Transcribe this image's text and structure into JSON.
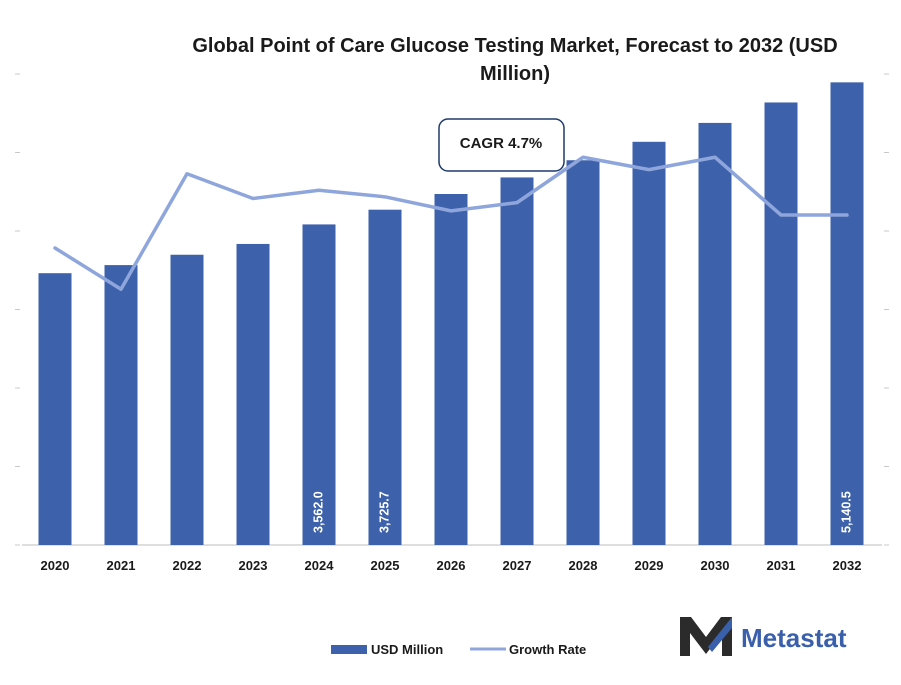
{
  "colors": {
    "bar": "#3d61aa",
    "line": "#8fa6dc",
    "text": "#1a1a1a",
    "brand": "#3a5fab",
    "brand_dark": "#2b2b2b"
  },
  "chart_data": {
    "type": "bar",
    "title_line1": "Global Point of Care Glucose Testing Market, Forecast to 2032 (USD",
    "title_line2": "Million)",
    "categories": [
      "2020",
      "2021",
      "2022",
      "2023",
      "2024",
      "2025",
      "2026",
      "2027",
      "2028",
      "2029",
      "2030",
      "2031",
      "2032"
    ],
    "series": [
      {
        "name": "USD Million",
        "kind": "bar",
        "values": [
          3020,
          3110,
          3225,
          3345,
          3562.0,
          3725.7,
          3900,
          4084,
          4275,
          4480,
          4690,
          4917,
          5140.5
        ],
        "value_labels": [
          "",
          "",
          "",
          "",
          "3,562.0",
          "3,725.7",
          "",
          "",
          "",
          "",
          "",
          "",
          "5,140.5"
        ]
      },
      {
        "name": "Growth Rate",
        "kind": "line",
        "values": [
          3.6,
          3.1,
          4.5,
          4.2,
          4.3,
          4.22,
          4.05,
          4.15,
          4.7,
          4.55,
          4.7,
          4.0,
          4.0
        ]
      }
    ],
    "ylim": [
      0,
      5500
    ],
    "y2lim": [
      0,
      6
    ],
    "grid": false,
    "legend_position": "bottom",
    "annotation": "CAGR 4.7%"
  },
  "brand": {
    "logo_icon": "metastat-m-icon",
    "name": "Metastat"
  }
}
